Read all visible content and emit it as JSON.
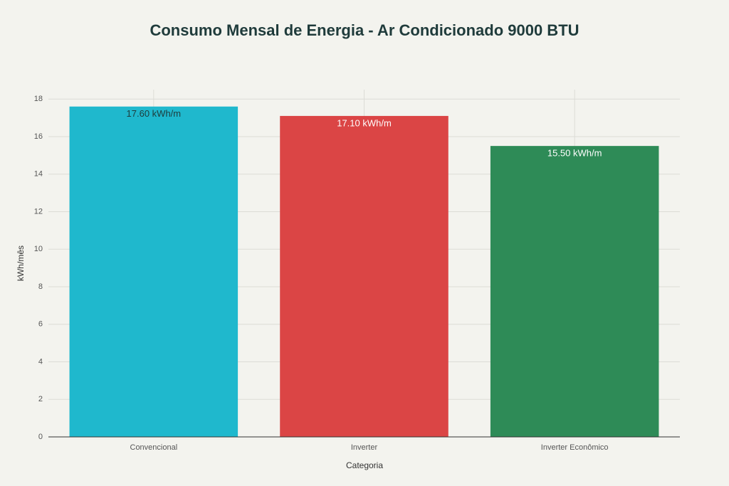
{
  "chart_data": {
    "type": "bar",
    "title": "Consumo Mensal de Energia - Ar Condicionado 9000 BTU",
    "x_label": "Categoria",
    "y_label": "kWh/mês",
    "categories": [
      "Convencional",
      "Inverter",
      "Inverter Econômico"
    ],
    "values": [
      17.6,
      17.1,
      15.5
    ],
    "value_labels": [
      "17.60 kWh/m",
      "17.10 kWh/m",
      "15.50 kWh/m"
    ],
    "colors": [
      "#1fb8cd",
      "#db4545",
      "#2e8b57"
    ],
    "ylim": [
      0,
      18.5
    ],
    "yticks": [
      0,
      2,
      4,
      6,
      8,
      10,
      12,
      14,
      16,
      18
    ],
    "grid": true
  }
}
